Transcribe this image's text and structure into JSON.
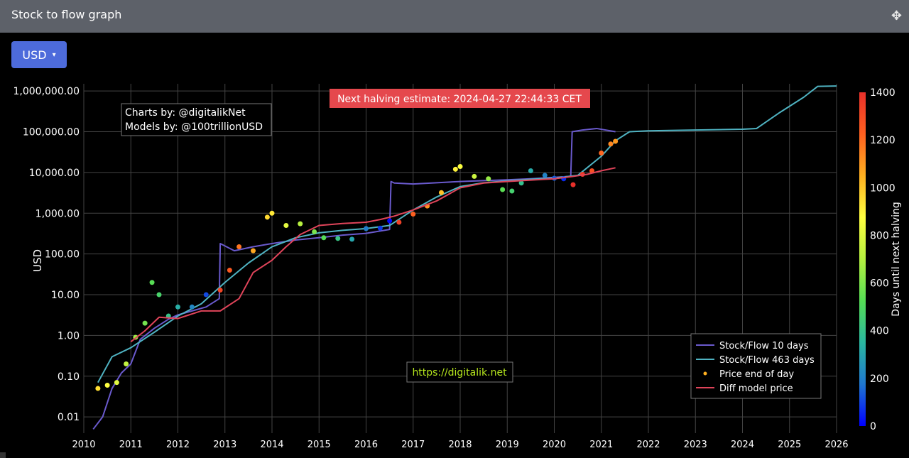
{
  "window": {
    "title": "Stock to flow graph",
    "move_icon": "move-icon"
  },
  "toolbar": {
    "currency_label": "USD",
    "caret": "▾"
  },
  "annotations": {
    "halving": "Next halving estimate: 2024-04-27 22:44:33 CET",
    "charts_by": "Charts by: @digitalikNet",
    "models_by": "Models by: @100trillionUSD",
    "site": "https://digitalik.net"
  },
  "colors": {
    "sf10": "#6a5acd",
    "sf463": "#4fb3c2",
    "diff": "#e0445a",
    "halving_box": "#e5484d",
    "site_text": "#b5e61d",
    "grid": "#444444"
  },
  "chart_data": {
    "type": "line",
    "title": "",
    "xlabel": "",
    "ylabel": "USD",
    "y_scale": "log",
    "ylim": [
      0.004,
      1500000
    ],
    "xlim": [
      2010.0,
      2026.0
    ],
    "x_ticks": [
      2010,
      2011,
      2012,
      2013,
      2014,
      2015,
      2016,
      2017,
      2018,
      2019,
      2020,
      2021,
      2022,
      2023,
      2024,
      2025,
      2026
    ],
    "x_tick_labels": [
      "2010",
      "2011",
      "2012",
      "2013",
      "2014",
      "2015",
      "2016",
      "2017",
      "2018",
      "2019",
      "2020",
      "2021",
      "2022",
      "2023",
      "2024",
      "2025",
      "2026"
    ],
    "y_ticks": [
      0.01,
      0.1,
      1,
      10,
      100,
      1000,
      10000,
      100000,
      1000000
    ],
    "y_tick_labels": [
      "0.01",
      "0.10",
      "1.00",
      "10.00",
      "100.00",
      "1,000.00",
      "10,000.00",
      "100,000.00",
      "1,000,000.00"
    ],
    "grid": true,
    "legend_position": "bottom-right",
    "colorbar": {
      "title": "Days until next halving",
      "range": [
        0,
        1400
      ],
      "ticks": [
        0,
        200,
        400,
        600,
        800,
        1000,
        1200,
        1400
      ],
      "tick_labels": [
        "0",
        "200",
        "400",
        "600",
        "800",
        "1000",
        "1200",
        "1400"
      ],
      "colors": [
        "#0000ff",
        "#1f77d0",
        "#2ab7a0",
        "#55dd55",
        "#b5f040",
        "#ffff40",
        "#ffb020",
        "#ff6020",
        "#e8302a"
      ]
    },
    "series": [
      {
        "name": "Stock/Flow 10 days",
        "kind": "line",
        "color": "#6a5acd",
        "x": [
          2010.2,
          2010.4,
          2010.6,
          2010.8,
          2011.0,
          2011.2,
          2011.5,
          2011.8,
          2012.0,
          2012.3,
          2012.6,
          2012.88,
          2012.9,
          2013.2,
          2013.6,
          2014.0,
          2014.5,
          2015.0,
          2015.5,
          2016.0,
          2016.5,
          2016.53,
          2016.6,
          2017.0,
          2017.5,
          2018.0,
          2018.5,
          2019.0,
          2019.5,
          2020.0,
          2020.35,
          2020.38,
          2020.6,
          2020.9,
          2021.3
        ],
        "y": [
          0.005,
          0.01,
          0.05,
          0.12,
          0.2,
          0.8,
          1.5,
          2.5,
          3.2,
          4,
          5,
          8,
          180,
          120,
          150,
          180,
          220,
          250,
          290,
          320,
          400,
          6000,
          5500,
          5200,
          5600,
          6000,
          6300,
          6600,
          7000,
          7600,
          8000,
          100000,
          110000,
          120000,
          100000
        ]
      },
      {
        "name": "Stock/Flow 463 days",
        "kind": "line",
        "color": "#4fb3c2",
        "x": [
          2010.3,
          2010.6,
          2011.0,
          2011.5,
          2012.0,
          2012.5,
          2013.0,
          2013.5,
          2014.0,
          2014.5,
          2015.0,
          2015.5,
          2016.0,
          2016.5,
          2017.0,
          2017.5,
          2018.0,
          2018.5,
          2019.0,
          2019.5,
          2020.0,
          2020.5,
          2021.0,
          2021.3,
          2021.6,
          2022.0,
          2023.0,
          2024.0,
          2024.3,
          2024.8,
          2025.3,
          2025.6,
          2026.0
        ],
        "y": [
          0.07,
          0.3,
          0.5,
          1.2,
          3,
          6,
          20,
          60,
          150,
          250,
          330,
          380,
          420,
          500,
          1200,
          2500,
          4500,
          5600,
          6200,
          6800,
          7300,
          8500,
          25000,
          60000,
          100000,
          105000,
          110000,
          115000,
          120000,
          300000,
          700000,
          1300000,
          1320000
        ]
      },
      {
        "name": "Price end of day",
        "kind": "scatter",
        "colorscale": "Days until next halving",
        "x": [
          2010.3,
          2010.5,
          2010.7,
          2010.9,
          2011.1,
          2011.3,
          2011.45,
          2011.6,
          2011.8,
          2012.0,
          2012.3,
          2012.6,
          2012.9,
          2013.1,
          2013.3,
          2013.6,
          2013.9,
          2014.0,
          2014.3,
          2014.6,
          2014.9,
          2015.1,
          2015.4,
          2015.7,
          2016.0,
          2016.3,
          2016.5,
          2016.7,
          2017.0,
          2017.3,
          2017.6,
          2017.9,
          2018.0,
          2018.3,
          2018.6,
          2018.9,
          2019.1,
          2019.3,
          2019.5,
          2019.8,
          2020.0,
          2020.2,
          2020.4,
          2020.6,
          2020.8,
          2021.0,
          2021.2,
          2021.3
        ],
        "y": [
          0.05,
          0.06,
          0.07,
          0.2,
          0.9,
          2,
          20,
          10,
          3,
          5,
          5,
          10,
          13,
          40,
          150,
          120,
          800,
          1000,
          500,
          550,
          350,
          250,
          240,
          230,
          420,
          430,
          650,
          600,
          950,
          1500,
          3200,
          12000,
          14000,
          8000,
          7000,
          3800,
          3500,
          5500,
          11000,
          8500,
          7200,
          7000,
          5000,
          9000,
          11000,
          30000,
          50000,
          58000
        ]
      },
      {
        "name": "Diff model price",
        "kind": "line",
        "color": "#e0445a",
        "x": [
          2011.0,
          2011.3,
          2011.6,
          2012.0,
          2012.5,
          2012.9,
          2013.3,
          2013.6,
          2014.0,
          2014.3,
          2014.6,
          2015.0,
          2015.5,
          2016.0,
          2016.3,
          2016.6,
          2017.0,
          2017.5,
          2018.0,
          2018.5,
          2019.0,
          2019.5,
          2020.0,
          2020.4,
          2020.7,
          2021.0,
          2021.3
        ],
        "y": [
          0.7,
          1.3,
          2.8,
          2.6,
          4,
          4,
          8,
          35,
          70,
          150,
          300,
          500,
          560,
          600,
          700,
          850,
          1200,
          2000,
          4200,
          5500,
          6000,
          6500,
          7000,
          8000,
          9000,
          11000,
          13000
        ]
      }
    ]
  }
}
